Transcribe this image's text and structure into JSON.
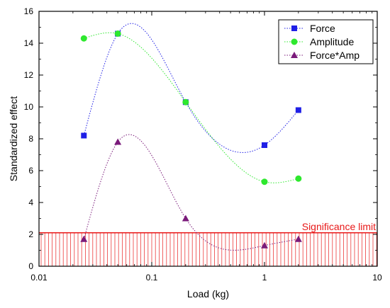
{
  "chart_data": {
    "type": "scatter",
    "xlabel": "Load (kg)",
    "ylabel": "Standardized effect",
    "x_scale": "log",
    "xlim": [
      0.01,
      10
    ],
    "ylim": [
      0,
      16
    ],
    "x_ticks": [
      0.01,
      0.1,
      1,
      10
    ],
    "x_tick_labels": [
      "0.01",
      "0.1",
      "1",
      "10"
    ],
    "y_ticks": [
      0,
      2,
      4,
      6,
      8,
      10,
      12,
      14,
      16
    ],
    "y_tick_labels": [
      "0",
      "2",
      "4",
      "6",
      "8",
      "10",
      "12",
      "14",
      "16"
    ],
    "legend_position": "top-right",
    "series": [
      {
        "name": "Force",
        "marker": "square",
        "color": "#1f1fe6",
        "x": [
          0.025,
          0.05,
          0.2,
          1,
          2
        ],
        "y": [
          8.2,
          14.6,
          10.3,
          7.6,
          9.8
        ]
      },
      {
        "name": "Amplitude",
        "marker": "circle",
        "color": "#2ee82e",
        "x": [
          0.025,
          0.05,
          0.2,
          1,
          2
        ],
        "y": [
          14.3,
          14.6,
          10.3,
          5.3,
          5.5
        ]
      },
      {
        "name": "Force*Amp",
        "marker": "triangle",
        "color": "#7a1a7a",
        "x": [
          0.025,
          0.05,
          0.2,
          1,
          2
        ],
        "y": [
          1.7,
          7.8,
          3.0,
          1.3,
          1.7
        ]
      }
    ],
    "threshold": {
      "label": "Significance limit",
      "value": 2.1,
      "color": "#e81818"
    }
  }
}
